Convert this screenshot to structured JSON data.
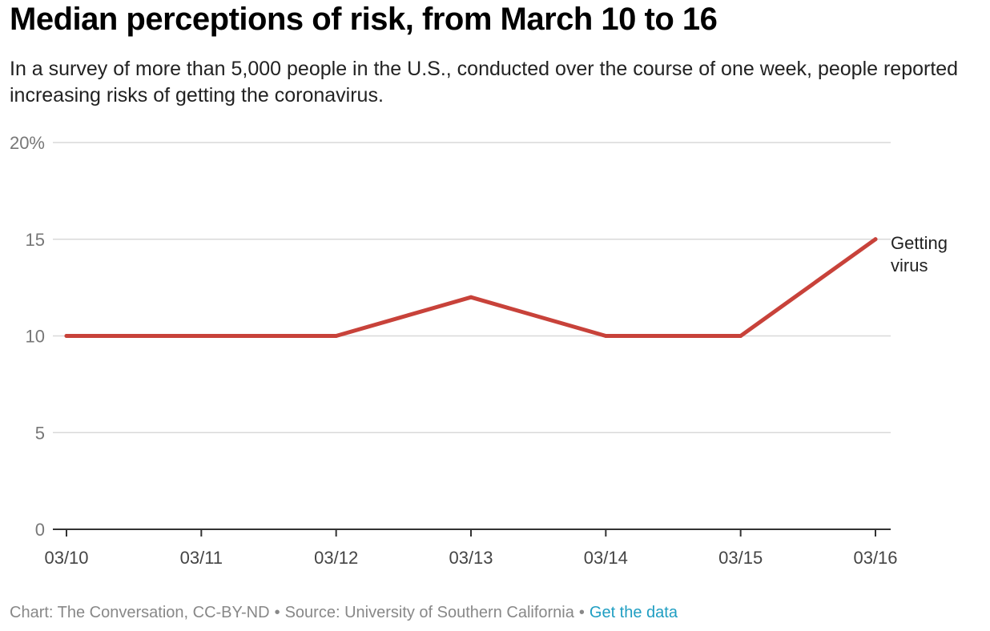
{
  "title": "Median perceptions of risk, from March 10 to 16",
  "subtitle": "In a survey of more than 5,000 people in the U.S., conducted over the course of one week, people reported increasing risks of getting the coronavirus.",
  "footer": {
    "credit": "Chart: The Conversation, CC-BY-ND",
    "separator": "•",
    "source": "Source: University of Southern California",
    "link": "Get the data"
  },
  "colors": {
    "line": "#c8423a",
    "grid": "#d9d9d9",
    "axis": "#333333",
    "tick_text": "#777777",
    "link": "#1f9ec2"
  },
  "chart_data": {
    "type": "line",
    "title": "Median perceptions of risk, from March 10 to 16",
    "x": [
      "03/10",
      "03/11",
      "03/12",
      "03/13",
      "03/14",
      "03/15",
      "03/16"
    ],
    "series": [
      {
        "name": "Getting virus",
        "values": [
          10,
          10,
          10,
          12,
          10,
          10,
          15
        ]
      }
    ],
    "ylim": [
      0,
      20
    ],
    "y_ticks": [
      0,
      5,
      10,
      15,
      20
    ],
    "y_tick_labels": [
      "0",
      "5",
      "10",
      "15",
      "20%"
    ],
    "grid": true,
    "legend": "inline label at end of line"
  }
}
